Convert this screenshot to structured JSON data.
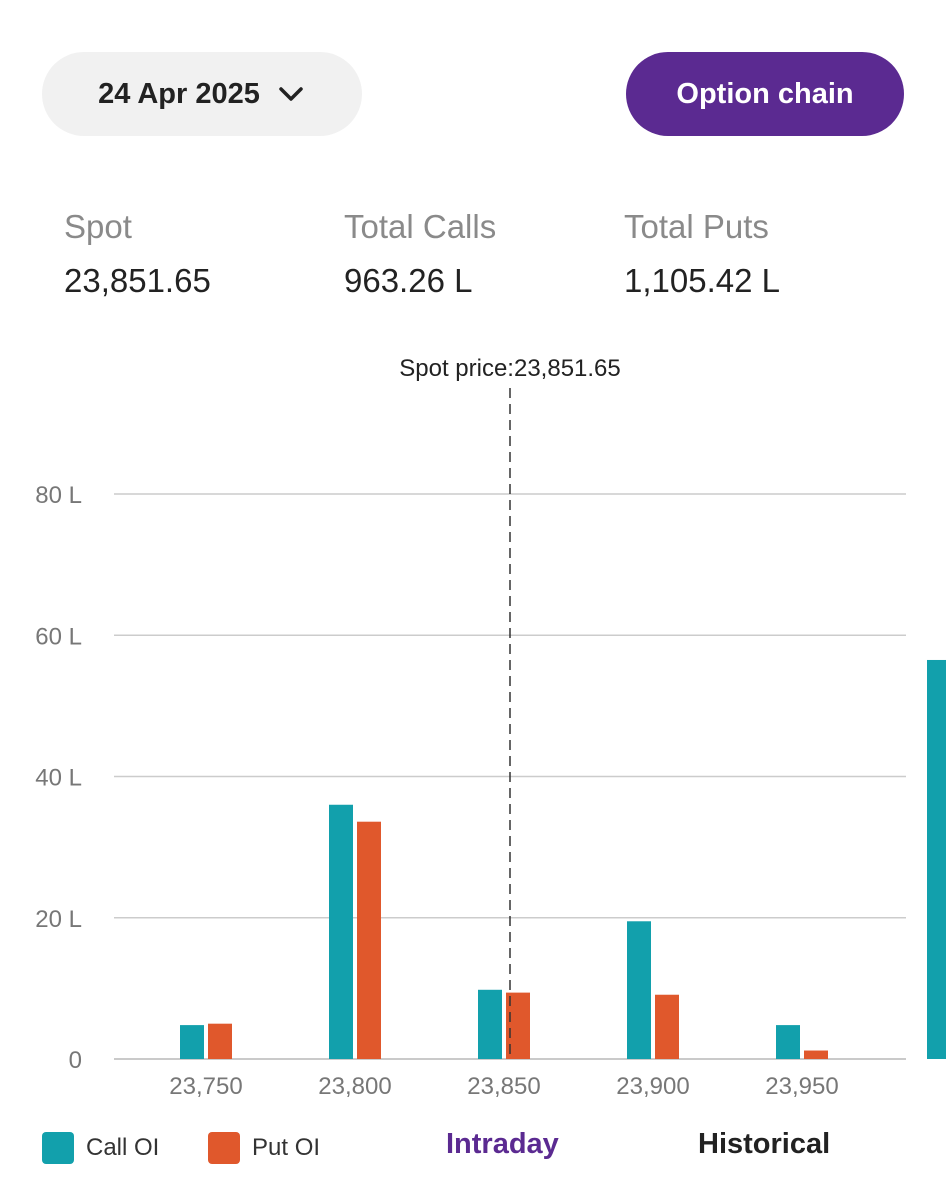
{
  "header": {
    "date_label": "24 Apr 2025",
    "option_chain_label": "Option chain"
  },
  "stats": {
    "spot_label": "Spot",
    "spot_value": "23,851.65",
    "calls_label": "Total Calls",
    "calls_value": "963.26 L",
    "puts_label": "Total Puts",
    "puts_value": "1,105.42 L"
  },
  "colors": {
    "call": "#12a0ac",
    "put": "#e0582c",
    "accent": "#5b2a91",
    "grid": "#cccccc"
  },
  "chart_data": {
    "type": "bar",
    "categories": [
      "23,750",
      "23,800",
      "23,850",
      "23,900",
      "23,950"
    ],
    "series": [
      {
        "name": "Call OI",
        "values": [
          4.8,
          36.0,
          9.8,
          19.5,
          4.8
        ]
      },
      {
        "name": "Put OI",
        "values": [
          5.0,
          33.6,
          9.4,
          9.1,
          1.2
        ]
      }
    ],
    "partial_bar_right_edge": {
      "series": "Call OI",
      "value": 56.5
    },
    "ylim": [
      0,
      80
    ],
    "yticks": [
      0,
      20,
      40,
      60,
      80
    ],
    "ytick_labels": [
      "0",
      "20 L",
      "40 L",
      "60 L",
      "80 L"
    ],
    "spot_marker": {
      "x": 23851.65,
      "label": "Spot price:23,851.65"
    },
    "grid": true,
    "legend_position": "bottom-left"
  },
  "legend": {
    "call_label": "Call OI",
    "put_label": "Put OI"
  },
  "tabs": {
    "intraday": "Intraday",
    "historical": "Historical"
  }
}
